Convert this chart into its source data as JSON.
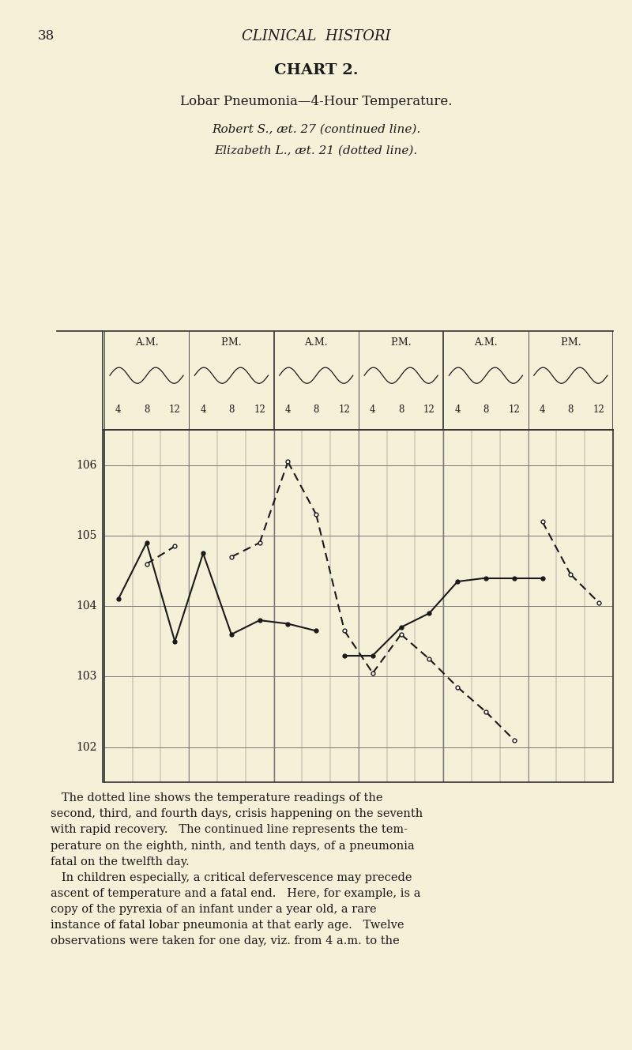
{
  "page_number": "38",
  "header_italic": "CLINICAL  HISTORI",
  "chart_title": "CHART 2.",
  "subtitle1": "Lobar Pneumonia—4-Hour Temperature.",
  "subtitle2": "Robert S., æt. 27 (continued line).",
  "subtitle3": "Elizabeth L., æt. 21 (dotted line).",
  "background_color": "#f5f0d8",
  "grid_color": "#777777",
  "line_color": "#1a1a1a",
  "ylim": [
    101.5,
    106.5
  ],
  "yticks": [
    102,
    103,
    104,
    105,
    106
  ],
  "ylabels": [
    "102",
    "103",
    "104",
    "105",
    "106"
  ],
  "time_labels": [
    "4",
    "8",
    "12",
    "4",
    "8",
    "12",
    "4",
    "8",
    "12",
    "4",
    "8",
    "12",
    "4",
    "8",
    "12",
    "4",
    "8",
    "12"
  ],
  "solid_segments": [
    [
      [
        0,
        104.1
      ],
      [
        1,
        104.9
      ]
    ],
    [
      [
        1,
        104.9
      ],
      [
        2,
        103.5
      ]
    ],
    [
      [
        2,
        103.5
      ],
      [
        3,
        104.75
      ]
    ],
    [
      [
        3,
        104.75
      ],
      [
        4,
        103.6
      ]
    ],
    [
      [
        4,
        103.6
      ],
      [
        5,
        103.8
      ]
    ],
    [
      [
        5,
        103.8
      ],
      [
        6,
        103.75
      ]
    ],
    [
      [
        6,
        103.75
      ],
      [
        7,
        103.65
      ]
    ],
    [
      [
        8,
        103.3
      ],
      [
        9,
        103.3
      ]
    ],
    [
      [
        9,
        103.3
      ],
      [
        10,
        103.7
      ]
    ],
    [
      [
        10,
        103.7
      ],
      [
        11,
        103.9
      ]
    ],
    [
      [
        11,
        103.9
      ],
      [
        12,
        104.35
      ]
    ],
    [
      [
        12,
        104.35
      ],
      [
        13,
        104.4
      ]
    ],
    [
      [
        13,
        104.4
      ],
      [
        14,
        104.4
      ]
    ],
    [
      [
        14,
        104.4
      ],
      [
        15,
        104.4
      ]
    ]
  ],
  "dotted_segments": [
    [
      [
        1,
        104.6
      ],
      [
        2,
        104.85
      ]
    ],
    [
      [
        4,
        104.7
      ],
      [
        5,
        104.9
      ]
    ],
    [
      [
        5,
        104.9
      ],
      [
        6,
        106.05
      ]
    ],
    [
      [
        6,
        106.05
      ],
      [
        7,
        105.3
      ]
    ],
    [
      [
        7,
        105.3
      ],
      [
        8,
        103.65
      ]
    ],
    [
      [
        8,
        103.65
      ],
      [
        9,
        103.05
      ]
    ],
    [
      [
        9,
        103.05
      ],
      [
        10,
        103.6
      ]
    ],
    [
      [
        10,
        103.6
      ],
      [
        11,
        103.25
      ]
    ],
    [
      [
        11,
        103.25
      ],
      [
        12,
        102.85
      ]
    ],
    [
      [
        12,
        102.85
      ],
      [
        13,
        102.5
      ]
    ],
    [
      [
        13,
        102.5
      ],
      [
        14,
        102.1
      ]
    ],
    [
      [
        15,
        105.2
      ],
      [
        16,
        104.45
      ]
    ],
    [
      [
        16,
        104.45
      ],
      [
        17,
        104.05
      ]
    ]
  ],
  "solid_points_filled": [
    [
      0,
      104.1
    ],
    [
      1,
      104.9
    ],
    [
      2,
      103.5
    ],
    [
      3,
      104.75
    ],
    [
      4,
      103.6
    ],
    [
      5,
      103.8
    ],
    [
      6,
      103.75
    ],
    [
      7,
      103.65
    ],
    [
      8,
      103.3
    ],
    [
      9,
      103.3
    ],
    [
      10,
      103.7
    ],
    [
      11,
      103.9
    ],
    [
      12,
      104.35
    ],
    [
      13,
      104.4
    ],
    [
      14,
      104.4
    ],
    [
      15,
      104.4
    ]
  ],
  "dotted_points_open": [
    [
      1,
      104.6
    ],
    [
      2,
      104.85
    ],
    [
      4,
      104.7
    ],
    [
      5,
      104.9
    ],
    [
      6,
      106.05
    ],
    [
      7,
      105.3
    ],
    [
      8,
      103.65
    ],
    [
      9,
      103.05
    ],
    [
      10,
      103.6
    ],
    [
      11,
      103.25
    ],
    [
      12,
      102.85
    ],
    [
      13,
      102.5
    ],
    [
      14,
      102.1
    ],
    [
      15,
      105.2
    ],
    [
      16,
      104.45
    ],
    [
      17,
      104.05
    ]
  ]
}
